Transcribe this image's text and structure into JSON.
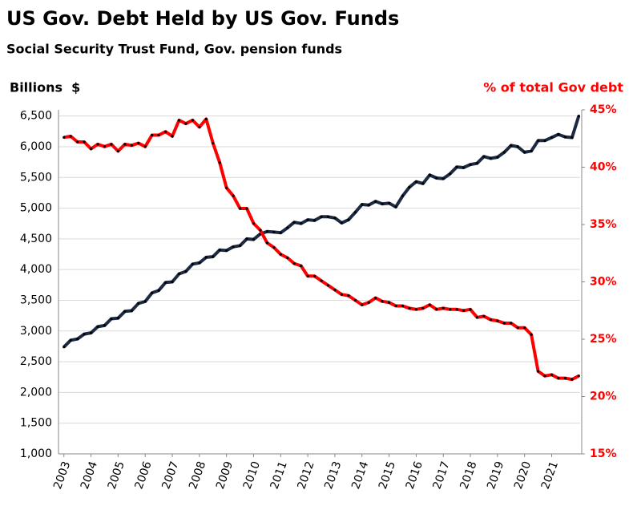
{
  "chart_data": {
    "type": "line",
    "title": "US Gov. Debt Held by US Gov. Funds",
    "subtitle": "Social Security Trust Fund, Gov. pension funds",
    "y_label": "Billions  $",
    "y2_label": "% of total Gov debt",
    "x": [
      2003,
      2003.25,
      2003.5,
      2003.75,
      2004,
      2004.25,
      2004.5,
      2004.75,
      2005,
      2005.25,
      2005.5,
      2005.75,
      2006,
      2006.25,
      2006.5,
      2006.75,
      2007,
      2007.25,
      2007.5,
      2007.75,
      2008,
      2008.25,
      2008.5,
      2008.75,
      2009,
      2009.25,
      2009.5,
      2009.75,
      2010,
      2010.25,
      2010.5,
      2010.75,
      2011,
      2011.25,
      2011.5,
      2011.75,
      2012,
      2012.25,
      2012.5,
      2012.75,
      2013,
      2013.25,
      2013.5,
      2013.75,
      2014,
      2014.25,
      2014.5,
      2014.75,
      2015,
      2015.25,
      2015.5,
      2015.75,
      2016,
      2016.25,
      2016.5,
      2016.75,
      2017,
      2017.25,
      2017.5,
      2017.75,
      2018,
      2018.25,
      2018.5,
      2018.75,
      2019,
      2019.25,
      2019.5,
      2019.75,
      2020,
      2020.25,
      2020.5,
      2020.75,
      2021,
      2021.25,
      2021.5,
      2021.75,
      2022
    ],
    "series": [
      {
        "name": "Billions",
        "color": "#1c2a44",
        "values": [
          2740,
          2850,
          2870,
          2950,
          2970,
          3070,
          3090,
          3200,
          3210,
          3320,
          3330,
          3450,
          3480,
          3620,
          3660,
          3790,
          3800,
          3930,
          3970,
          4090,
          4110,
          4200,
          4210,
          4320,
          4310,
          4370,
          4390,
          4500,
          4490,
          4580,
          4620,
          4610,
          4600,
          4680,
          4770,
          4750,
          4810,
          4800,
          4860,
          4860,
          4840,
          4760,
          4810,
          4930,
          5060,
          5050,
          5110,
          5070,
          5080,
          5020,
          5200,
          5340,
          5430,
          5400,
          5540,
          5490,
          5480,
          5560,
          5670,
          5660,
          5710,
          5730,
          5840,
          5810,
          5830,
          5910,
          6020,
          6000,
          5910,
          5930,
          6100,
          6100,
          6150,
          6200,
          6160,
          6150,
          6500
        ]
      },
      {
        "name": "% of total",
        "color": "#ff0000",
        "axis": "y2",
        "values": [
          42.6,
          42.7,
          42.2,
          42.2,
          41.6,
          42.0,
          41.8,
          42.0,
          41.4,
          42.0,
          41.9,
          42.1,
          41.8,
          42.8,
          42.8,
          43.1,
          42.7,
          44.1,
          43.8,
          44.1,
          43.5,
          44.2,
          42.1,
          40.4,
          38.2,
          37.5,
          36.4,
          36.4,
          35.1,
          34.5,
          33.4,
          33.0,
          32.4,
          32.1,
          31.6,
          31.4,
          30.5,
          30.5,
          30.1,
          29.7,
          29.3,
          28.9,
          28.8,
          28.4,
          28.0,
          28.2,
          28.6,
          28.3,
          28.2,
          27.9,
          27.9,
          27.7,
          27.6,
          27.7,
          28.0,
          27.6,
          27.7,
          27.6,
          27.6,
          27.5,
          27.6,
          26.9,
          27.0,
          26.7,
          26.6,
          26.4,
          26.4,
          26.0,
          26.0,
          25.4,
          22.2,
          21.8,
          21.9,
          21.6,
          21.6,
          21.5,
          21.8
        ]
      }
    ],
    "xlim": [
      2002.8,
      2022.05
    ],
    "xticks": [
      2003,
      2004,
      2005,
      2006,
      2007,
      2008,
      2009,
      2010,
      2011,
      2012,
      2013,
      2014,
      2015,
      2016,
      2017,
      2018,
      2019,
      2020,
      2021
    ],
    "ylim": [
      1000,
      6600
    ],
    "yticks": [
      {
        "value": 1000,
        "label": "1,000"
      },
      {
        "value": 1500,
        "label": "1,500"
      },
      {
        "value": 2000,
        "label": "2,000"
      },
      {
        "value": 2500,
        "label": "2,500"
      },
      {
        "value": 3000,
        "label": "3,000"
      },
      {
        "value": 3500,
        "label": "3,500"
      },
      {
        "value": 4000,
        "label": "4,000"
      },
      {
        "value": 4500,
        "label": "4,500"
      },
      {
        "value": 5000,
        "label": "5,000"
      },
      {
        "value": 5500,
        "label": "5,500"
      },
      {
        "value": 6000,
        "label": "6,000"
      },
      {
        "value": 6500,
        "label": "6,500"
      }
    ],
    "y2lim": [
      15,
      45
    ],
    "y2ticks": [
      {
        "value": 15,
        "label": "15%"
      },
      {
        "value": 20,
        "label": "20%"
      },
      {
        "value": 25,
        "label": "25%"
      },
      {
        "value": 30,
        "label": "30%"
      },
      {
        "value": 35,
        "label": "35%"
      },
      {
        "value": 40,
        "label": "40%"
      },
      {
        "value": 45,
        "label": "45%"
      }
    ],
    "grid": true,
    "legend": false
  }
}
